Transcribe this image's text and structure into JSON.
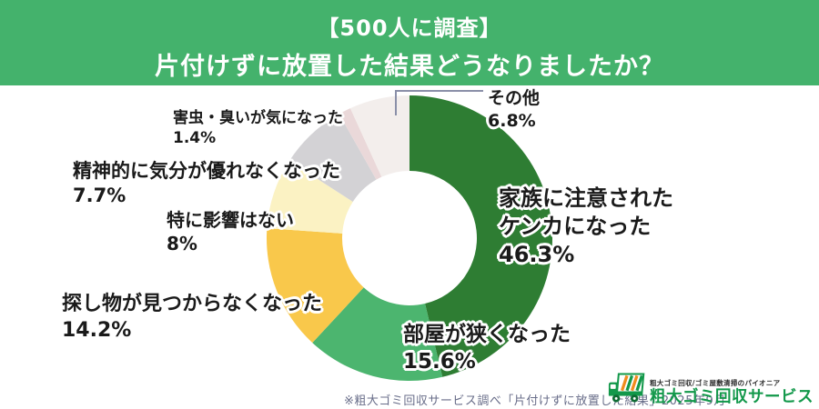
{
  "header": {
    "line1": "【500人に調査】",
    "line2": "片付けずに放置した結果どうなりましたか？",
    "background_color": "#44b26c"
  },
  "chart_data": {
    "type": "pie",
    "donut": true,
    "title": "片付けずに放置した結果どうなりましたか？",
    "unit": "%",
    "direction": "clockwise",
    "start_angle": "top",
    "slices": [
      {
        "id": "kazoku",
        "lines": [
          "家族に注意された",
          "ケンカになった"
        ],
        "pct_label": "46.3%",
        "value": 46.3,
        "color": "#2e7d33"
      },
      {
        "id": "heya",
        "lines": [
          "部屋が狭くなった"
        ],
        "pct_label": "15.6%",
        "value": 15.6,
        "color": "#4cb56f"
      },
      {
        "id": "sagashimono",
        "lines": [
          "探し物が見つからなくなった"
        ],
        "pct_label": "14.2%",
        "value": 14.2,
        "color": "#f9c84b"
      },
      {
        "id": "tokuni",
        "lines": [
          "特に影響はない"
        ],
        "pct_label": "8%",
        "value": 8,
        "color": "#fbf2c3"
      },
      {
        "id": "seishin",
        "lines": [
          "精神的に気分が優れなくなった"
        ],
        "pct_label": "7.7%",
        "value": 7.7,
        "color": "#d3d2d5"
      },
      {
        "id": "gaichu",
        "lines": [
          "害虫・臭いが気になった"
        ],
        "pct_label": "1.4%",
        "value": 1.4,
        "color": "#ead8d9"
      },
      {
        "id": "sonota",
        "lines": [
          "その他"
        ],
        "pct_label": "6.8%",
        "value": 6.8,
        "color": "#f3eeec"
      }
    ],
    "callout_color": "#8a8fa8"
  },
  "footer": {
    "source_note": "※粗大ゴミ回収サービス調べ「片付けずに放置した結果」2025年9月"
  },
  "logo": {
    "tagline": "粗大ゴミ回収/ゴミ屋敷清掃のパイオニア",
    "name": "粗大ゴミ回収サービス",
    "brand_green": "#12984a",
    "brand_orange": "#f08c1e",
    "icon": "truck-icon"
  }
}
